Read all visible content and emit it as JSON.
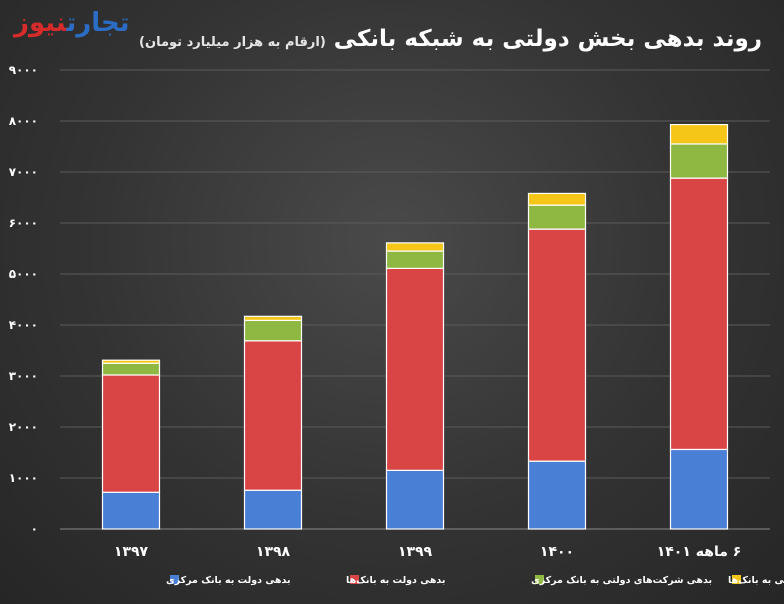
{
  "logo": {
    "part1": "تجارت",
    "part2": "نیوز"
  },
  "title": "روند بدهی بخش دولتی به شبکه بانکی",
  "subtitle": "(ارقام به هزار میلیارد تومان)",
  "chart_data": {
    "type": "bar",
    "stacked": true,
    "categories": [
      "۱۳۹۷",
      "۱۳۹۸",
      "۱۳۹۹",
      "۱۴۰۰",
      "۶ ماهه ۱۴۰۱"
    ],
    "series": [
      {
        "name": "بدهی دولت به بانک مرکزی",
        "color": "#4a7fd6",
        "values": [
          720,
          760,
          1150,
          1330,
          1560
        ]
      },
      {
        "name": "بدهی دولت به بانک‌ها",
        "color": "#d94545",
        "values": [
          2300,
          2930,
          3960,
          4550,
          5320
        ]
      },
      {
        "name": "بدهی شرکت‌های دولتی به بانک مرکزی",
        "color": "#8fb842",
        "values": [
          230,
          400,
          340,
          470,
          670
        ]
      },
      {
        "name": "بدهی شرکت‌های دولتی به بانک‌ها",
        "color": "#f5c518",
        "values": [
          60,
          80,
          160,
          230,
          380
        ]
      }
    ],
    "yticks": [
      "۰",
      "۱۰۰۰",
      "۲۰۰۰",
      "۳۰۰۰",
      "۴۰۰۰",
      "۵۰۰۰",
      "۶۰۰۰",
      "۷۰۰۰",
      "۸۰۰۰",
      "۹۰۰۰"
    ],
    "ylim": [
      0,
      9000
    ],
    "grid": true,
    "legend_position": "bottom"
  }
}
